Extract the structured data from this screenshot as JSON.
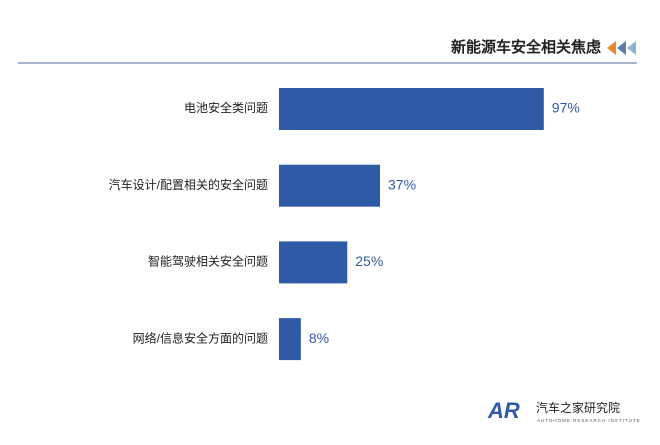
{
  "chart_data": {
    "type": "hbar",
    "title": "新能源车安全相关焦虑",
    "categories": [
      "电池安全类问题",
      "汽车设计/配置相关的安全问题",
      "智能驾驶相关安全问题",
      "网络/信息安全方面的问题"
    ],
    "values": [
      97,
      37,
      25,
      8
    ],
    "value_labels": [
      "97%",
      "37%",
      "25%",
      "8%"
    ],
    "color": "#2f5ba6"
  },
  "logo": {
    "mark": "AR",
    "name": "汽车之家研究院",
    "subtitle": "AUTOHOME RESEARCH INSTITUTE"
  }
}
